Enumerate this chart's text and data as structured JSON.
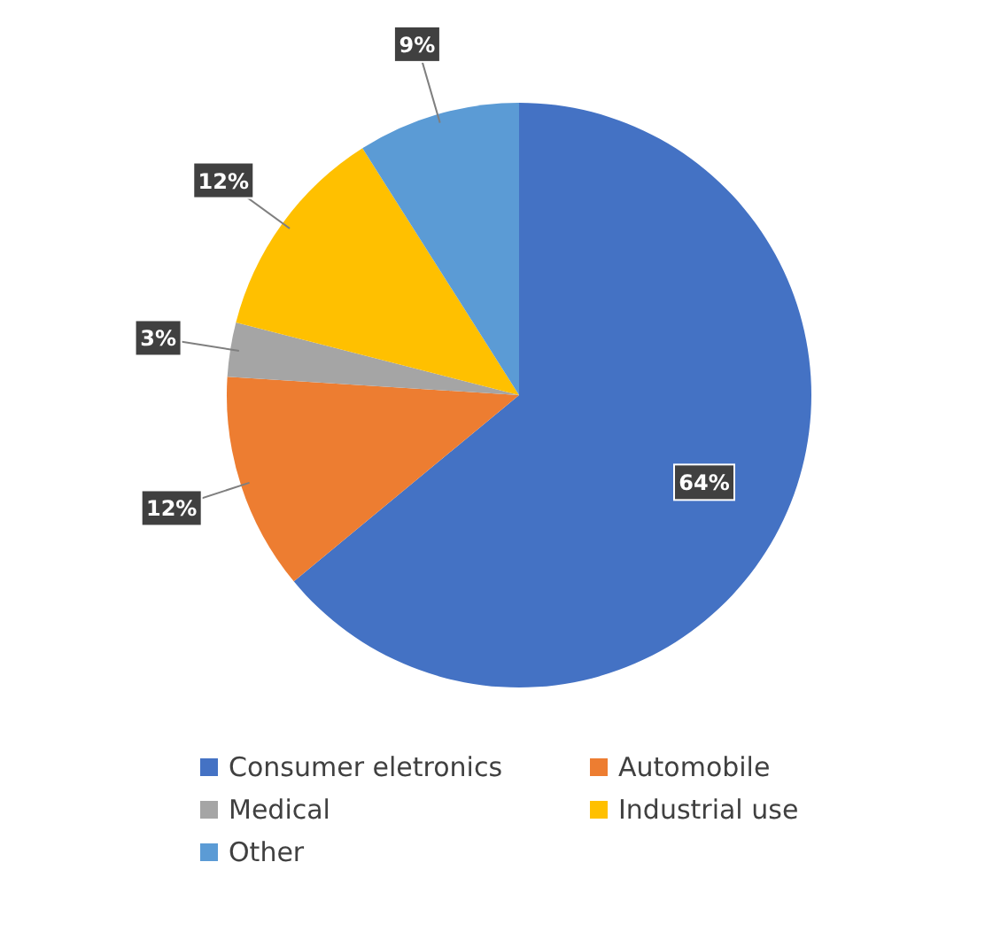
{
  "chart_data": {
    "type": "pie",
    "categories": [
      "Consumer eletronics",
      "Automobile",
      "Medical",
      "Industrial use",
      "Other"
    ],
    "values": [
      64,
      12,
      3,
      12,
      9
    ],
    "colors": [
      "#4472c4",
      "#ed7d31",
      "#a5a5a5",
      "#ffc000",
      "#5b9bd5"
    ],
    "value_labels": [
      "64%",
      "12%",
      "3%",
      "12%",
      "9%"
    ],
    "legend": "bottom"
  }
}
